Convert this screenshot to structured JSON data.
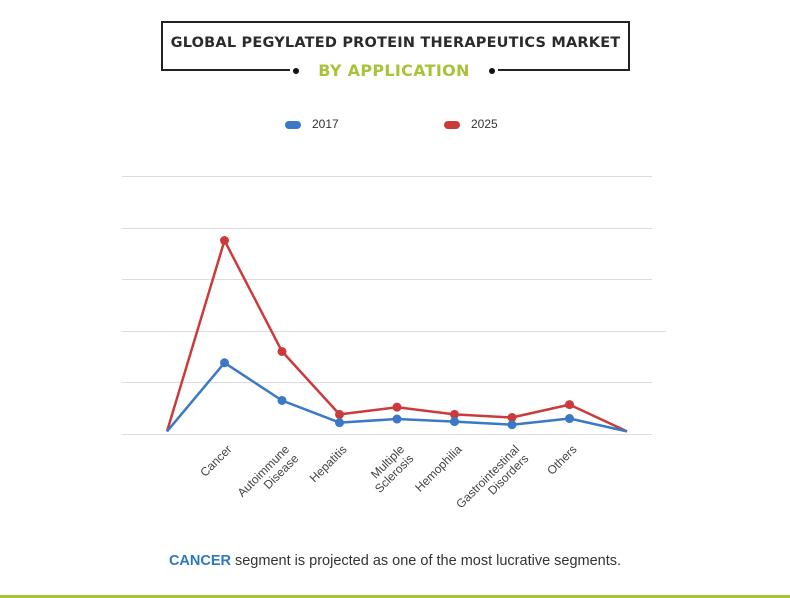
{
  "title": "GLOBAL PEGYLATED PROTEIN THERAPEUTICS MARKET",
  "subtitle": "BY APPLICATION",
  "footer": {
    "highlight": "CANCER",
    "text": " segment is projected as one of the most lucrative segments."
  },
  "colors": {
    "accent_green": "#a8c33a",
    "highlight_blue": "#2a79c4"
  },
  "chart_data": {
    "type": "line",
    "categories": [
      "",
      "Cancer",
      "Autoimmune Disease",
      "Hepatitis",
      "Multiple Sclerosis",
      "Hemophilia",
      "Gastrointestinal Disorders",
      "Others",
      ""
    ],
    "category_lines": [
      [],
      [
        "Cancer"
      ],
      [
        "Autoimmune",
        "Disease"
      ],
      [
        "Hepatitis"
      ],
      [
        "Multiple",
        "Sclerosis"
      ],
      [
        "Hemophilia"
      ],
      [
        "Gastrointestinal",
        "Disorders"
      ],
      [
        "Others"
      ],
      []
    ],
    "series": [
      {
        "name": "2017",
        "color": "#3a78c8",
        "values": [
          0.5,
          13.8,
          6.5,
          2.2,
          2.9,
          2.4,
          1.8,
          3.0,
          0.5
        ]
      },
      {
        "name": "2025",
        "color": "#cc3b3b",
        "values": [
          0.5,
          37.5,
          16.0,
          3.8,
          5.2,
          3.8,
          3.2,
          5.7,
          0.5
        ]
      }
    ],
    "markers_on": [
      1,
      2,
      3,
      4,
      5,
      6,
      7
    ],
    "ylim": [
      0,
      50
    ],
    "yticks": [
      0,
      10,
      20,
      30,
      40,
      50
    ],
    "grid": true,
    "legend_position": "top"
  }
}
